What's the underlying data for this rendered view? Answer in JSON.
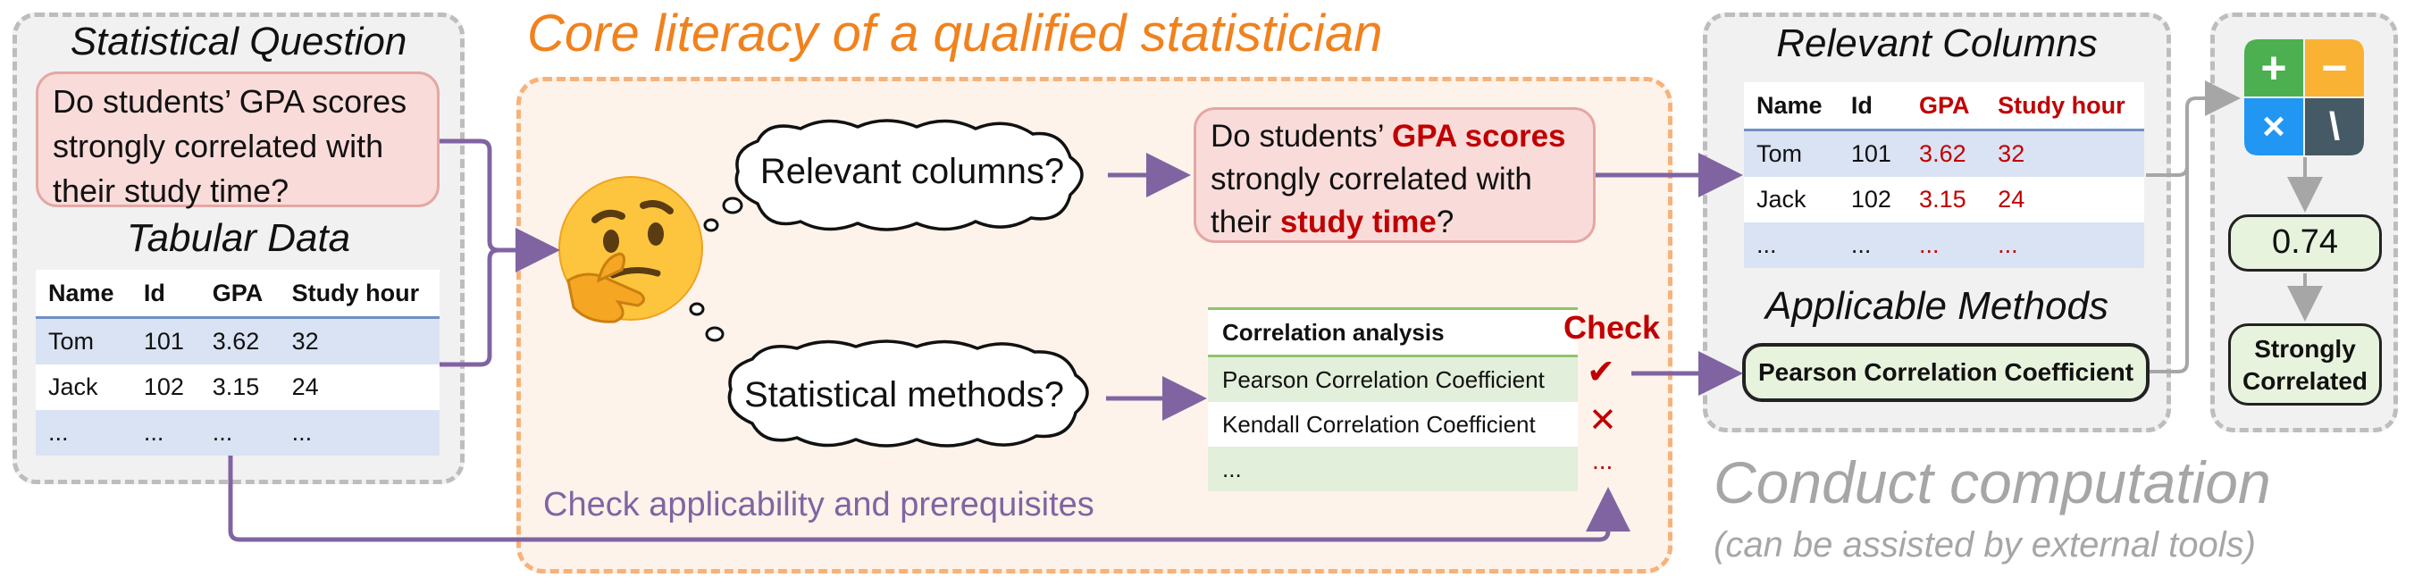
{
  "title": "Core literacy of a qualified statistician",
  "statistical_question": {
    "heading": "Statistical Question",
    "text": "Do students’ GPA scores strongly correlated with their study time?"
  },
  "tabular_data": {
    "heading": "Tabular Data",
    "columns": [
      "Name",
      "Id",
      "GPA",
      "Study hour"
    ],
    "rows": [
      [
        "Tom",
        "101",
        "3.62",
        "32"
      ],
      [
        "Jack",
        "102",
        "3.15",
        "24"
      ],
      [
        "...",
        "...",
        "...",
        "..."
      ]
    ]
  },
  "thoughts": {
    "relevant": "Relevant columns?",
    "methods": "Statistical methods?"
  },
  "highlighted_question": {
    "part1": "Do students’ ",
    "highlight1": "GPA scores",
    "part2": " strongly correlated with their ",
    "highlight2": "study time",
    "part3": "?"
  },
  "correlation_table": {
    "header": "Correlation analysis",
    "rows": [
      "Pearson Correlation Coefficient",
      "Kendall Correlation Coefficient",
      "..."
    ],
    "check_label": "Check",
    "marks": [
      "✔",
      "✕",
      "..."
    ]
  },
  "check_applicability": "Check applicability and prerequisites",
  "relevant_columns": {
    "heading": "Relevant Columns",
    "columns": [
      "Name",
      "Id",
      "GPA",
      "Study hour"
    ],
    "rows": [
      [
        "Tom",
        "101",
        "3.62",
        "32"
      ],
      [
        "Jack",
        "102",
        "3.15",
        "24"
      ],
      [
        "...",
        "...",
        "...",
        "..."
      ]
    ]
  },
  "applicable_methods": {
    "heading": "Applicable Methods",
    "method": "Pearson Correlation Coefficient"
  },
  "computation": {
    "result": "0.74",
    "conclusion": "Strongly Correlated",
    "calc_symbols": [
      "+",
      "−",
      "×",
      "\\"
    ]
  },
  "conduct": {
    "title": "Conduct computation",
    "subtitle": "(can be assisted by external tools)"
  },
  "colors": {
    "title_orange": "#f0821e",
    "arrow_purple": "#8064a2",
    "highlight_red": "#c00000"
  },
  "icons": {
    "thinking": "thinking-face-icon",
    "calculator": "calculator-icon"
  }
}
